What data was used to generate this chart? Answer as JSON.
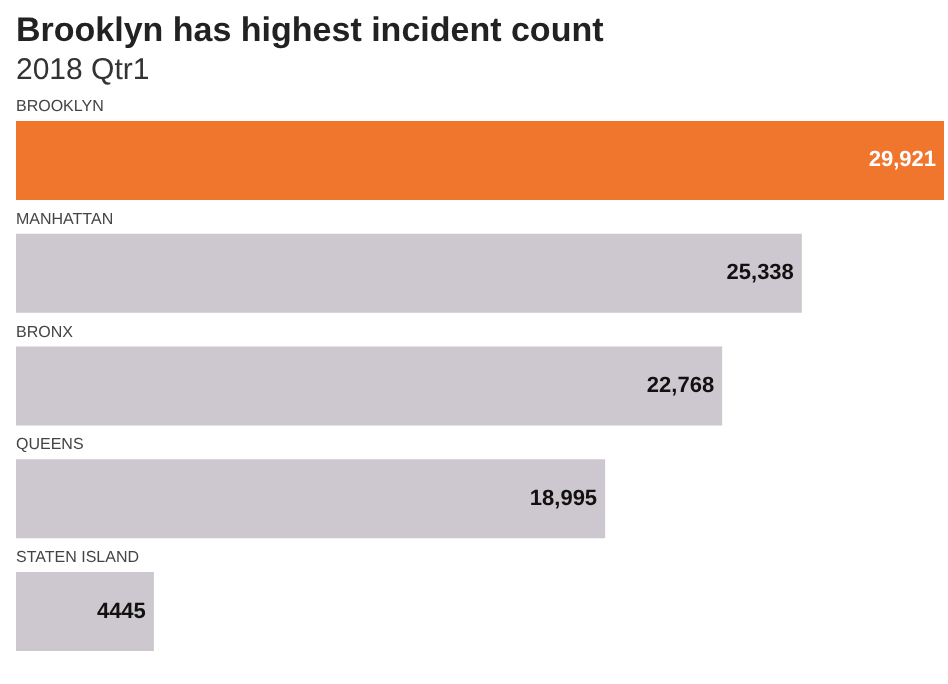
{
  "chart_data": {
    "type": "bar",
    "orientation": "horizontal",
    "title": "Brooklyn has highest incident count",
    "subtitle": "2018 Qtr1",
    "categories": [
      "BROOKLYN",
      "MANHATTAN",
      "BRONX",
      "QUEENS",
      "STATEN ISLAND"
    ],
    "values": [
      29921,
      25338,
      22768,
      18995,
      4445
    ],
    "value_labels": [
      "29,921",
      "25,338",
      "22,768",
      "18,995",
      "4445"
    ],
    "colors": [
      "#f0762e",
      "#cdc8cf",
      "#cdc8cf",
      "#cdc8cf",
      "#cdc8cf"
    ]
  }
}
